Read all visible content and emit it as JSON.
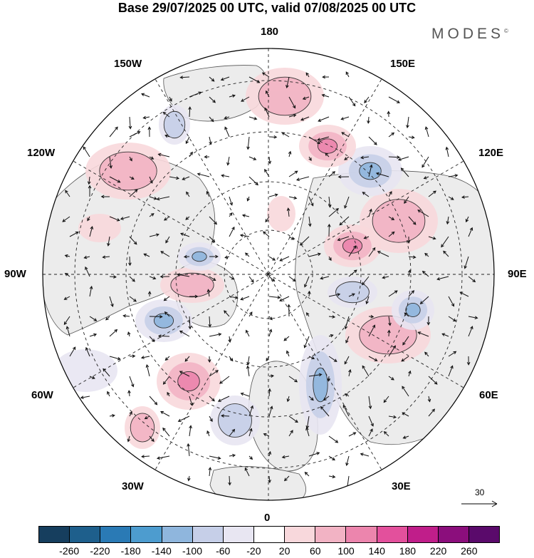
{
  "title": "Base 29/07/2025 00 UTC, valid 07/08/2025 00 UTC",
  "logo": "MODES",
  "logo_mark": "©",
  "longitude_labels": {
    "top": "180",
    "bottom": "0",
    "left": "90W",
    "right": "90E",
    "w150": "150W",
    "e150": "150E",
    "w120": "120W",
    "e120": "120E",
    "w60": "60W",
    "e60": "60E",
    "w30": "30W",
    "e30": "30E"
  },
  "vector_scale": "30",
  "colorbar": {
    "colors": [
      "#163e5e",
      "#1e5f8c",
      "#2a7ab5",
      "#4d9ccf",
      "#8fb6dd",
      "#c6cfe8",
      "#e8e6f2",
      "#ffffff",
      "#f8d8dc",
      "#f2b3c4",
      "#ec85ad",
      "#e3509c",
      "#c01e8a",
      "#8b0e7c",
      "#5a0a6b"
    ],
    "ticks": [
      "-260",
      "-220",
      "-180",
      "-140",
      "-100",
      "-60",
      "-20",
      "20",
      "60",
      "100",
      "140",
      "180",
      "220",
      "260"
    ]
  },
  "anomalies": [
    {
      "kind": "pos",
      "level": 2
    },
    {
      "kind": "pos",
      "level": 3
    },
    {
      "kind": "neg",
      "level": 3
    },
    {
      "kind": "pos",
      "level": 3
    },
    {
      "kind": "neg",
      "level": 2
    },
    {
      "kind": "pos",
      "level": 2
    },
    {
      "kind": "neg",
      "level": 3
    },
    {
      "kind": "pos",
      "level": 3
    },
    {
      "kind": "neg",
      "level": 2
    },
    {
      "kind": "pos",
      "level": 2
    },
    {
      "kind": "neg",
      "level": 3
    },
    {
      "kind": "pos",
      "level": 2
    },
    {
      "kind": "neg",
      "level": 3
    },
    {
      "kind": "pos",
      "level": 2
    },
    {
      "kind": "pos",
      "level": 2
    },
    {
      "kind": "neg",
      "level": 2
    },
    {
      "kind": "neg",
      "level": 3
    },
    {
      "kind": "pos",
      "level": 1
    },
    {
      "kind": "neg",
      "level": 1
    },
    {
      "kind": "pos",
      "level": 1
    }
  ]
}
